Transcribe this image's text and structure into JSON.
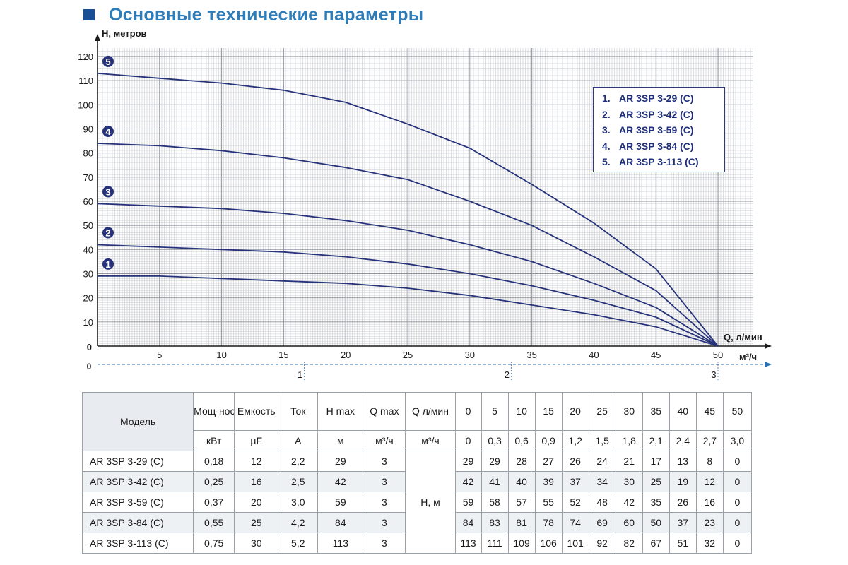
{
  "title": "Основные технические параметры",
  "chart_data": {
    "type": "line",
    "ylabel": "H, метров",
    "xlabel": "Q, л/мин",
    "x2label": "м³/ч",
    "y_ticks": [
      "0",
      "10",
      "20",
      "30",
      "40",
      "50",
      "60",
      "70",
      "80",
      "90",
      "100",
      "110",
      "120"
    ],
    "x_ticks": [
      "5",
      "10",
      "15",
      "20",
      "25",
      "30",
      "35",
      "40",
      "45",
      "50"
    ],
    "x2_ticks": [
      "0",
      "1",
      "2",
      "3"
    ],
    "xlim": [
      0,
      50
    ],
    "ylim": [
      0,
      120
    ],
    "grid": true,
    "x": [
      0,
      5,
      10,
      15,
      20,
      25,
      30,
      35,
      40,
      45,
      50
    ],
    "series": [
      {
        "name": "AR 3SP 3-29 (C)",
        "marker": "1",
        "values": [
          29,
          29,
          28,
          27,
          26,
          24,
          21,
          17,
          13,
          8,
          0
        ]
      },
      {
        "name": "AR 3SP 3-42 (C)",
        "marker": "2",
        "values": [
          42,
          41,
          40,
          39,
          37,
          34,
          30,
          25,
          19,
          12,
          0
        ]
      },
      {
        "name": "AR 3SP 3-59 (C)",
        "marker": "3",
        "values": [
          59,
          58,
          57,
          55,
          52,
          48,
          42,
          35,
          26,
          16,
          0
        ]
      },
      {
        "name": "AR 3SP 3-84 (C)",
        "marker": "4",
        "values": [
          84,
          83,
          81,
          78,
          74,
          69,
          60,
          50,
          37,
          23,
          0
        ]
      },
      {
        "name": "AR 3SP 3-113 (C)",
        "marker": "5",
        "values": [
          113,
          111,
          109,
          106,
          101,
          92,
          82,
          67,
          51,
          32,
          0
        ]
      }
    ],
    "line_color": "#26337a"
  },
  "legend": [
    {
      "num": "1.",
      "label": "AR 3SP 3-29 (C)"
    },
    {
      "num": "2.",
      "label": "AR 3SP 3-42 (C)"
    },
    {
      "num": "3.",
      "label": "AR 3SP 3-59 (C)"
    },
    {
      "num": "4.",
      "label": "AR 3SP 3-84 (C)"
    },
    {
      "num": "5.",
      "label": "AR 3SP 3-113 (C)"
    }
  ],
  "table": {
    "model_header": "Модель",
    "headers": [
      "Мощ-ность",
      "Емкость",
      "Ток",
      "H max",
      "Q max",
      "Q л/мин"
    ],
    "units": [
      "кВт",
      "μF",
      "A",
      "м",
      "м³/ч",
      "м³/ч"
    ],
    "q_lpm": [
      "0",
      "5",
      "10",
      "15",
      "20",
      "25",
      "30",
      "35",
      "40",
      "45",
      "50"
    ],
    "q_m3h": [
      "0",
      "0,3",
      "0,6",
      "0,9",
      "1,2",
      "1,5",
      "1,8",
      "2,1",
      "2,4",
      "2,7",
      "3,0"
    ],
    "h_unit": "H, м",
    "rows": [
      {
        "model": "AR 3SP 3-29 (C)",
        "power": "0,18",
        "capacity": "12",
        "current": "2,2",
        "hmax": "29",
        "qmax": "3",
        "h": [
          "29",
          "29",
          "28",
          "27",
          "26",
          "24",
          "21",
          "17",
          "13",
          "8",
          "0"
        ]
      },
      {
        "model": "AR 3SP 3-42 (C)",
        "power": "0,25",
        "capacity": "16",
        "current": "2,5",
        "hmax": "42",
        "qmax": "3",
        "h": [
          "42",
          "41",
          "40",
          "39",
          "37",
          "34",
          "30",
          "25",
          "19",
          "12",
          "0"
        ]
      },
      {
        "model": "AR 3SP 3-59 (C)",
        "power": "0,37",
        "capacity": "20",
        "current": "3,0",
        "hmax": "59",
        "qmax": "3",
        "h": [
          "59",
          "58",
          "57",
          "55",
          "52",
          "48",
          "42",
          "35",
          "26",
          "16",
          "0"
        ]
      },
      {
        "model": "AR 3SP 3-84 (C)",
        "power": "0,55",
        "capacity": "25",
        "current": "4,2",
        "hmax": "84",
        "qmax": "3",
        "h": [
          "84",
          "83",
          "81",
          "78",
          "74",
          "69",
          "60",
          "50",
          "37",
          "23",
          "0"
        ]
      },
      {
        "model": "AR 3SP 3-113 (C)",
        "power": "0,75",
        "capacity": "30",
        "current": "5,2",
        "hmax": "113",
        "qmax": "3",
        "h": [
          "113",
          "111",
          "109",
          "106",
          "101",
          "92",
          "82",
          "67",
          "51",
          "32",
          "0"
        ]
      }
    ]
  }
}
